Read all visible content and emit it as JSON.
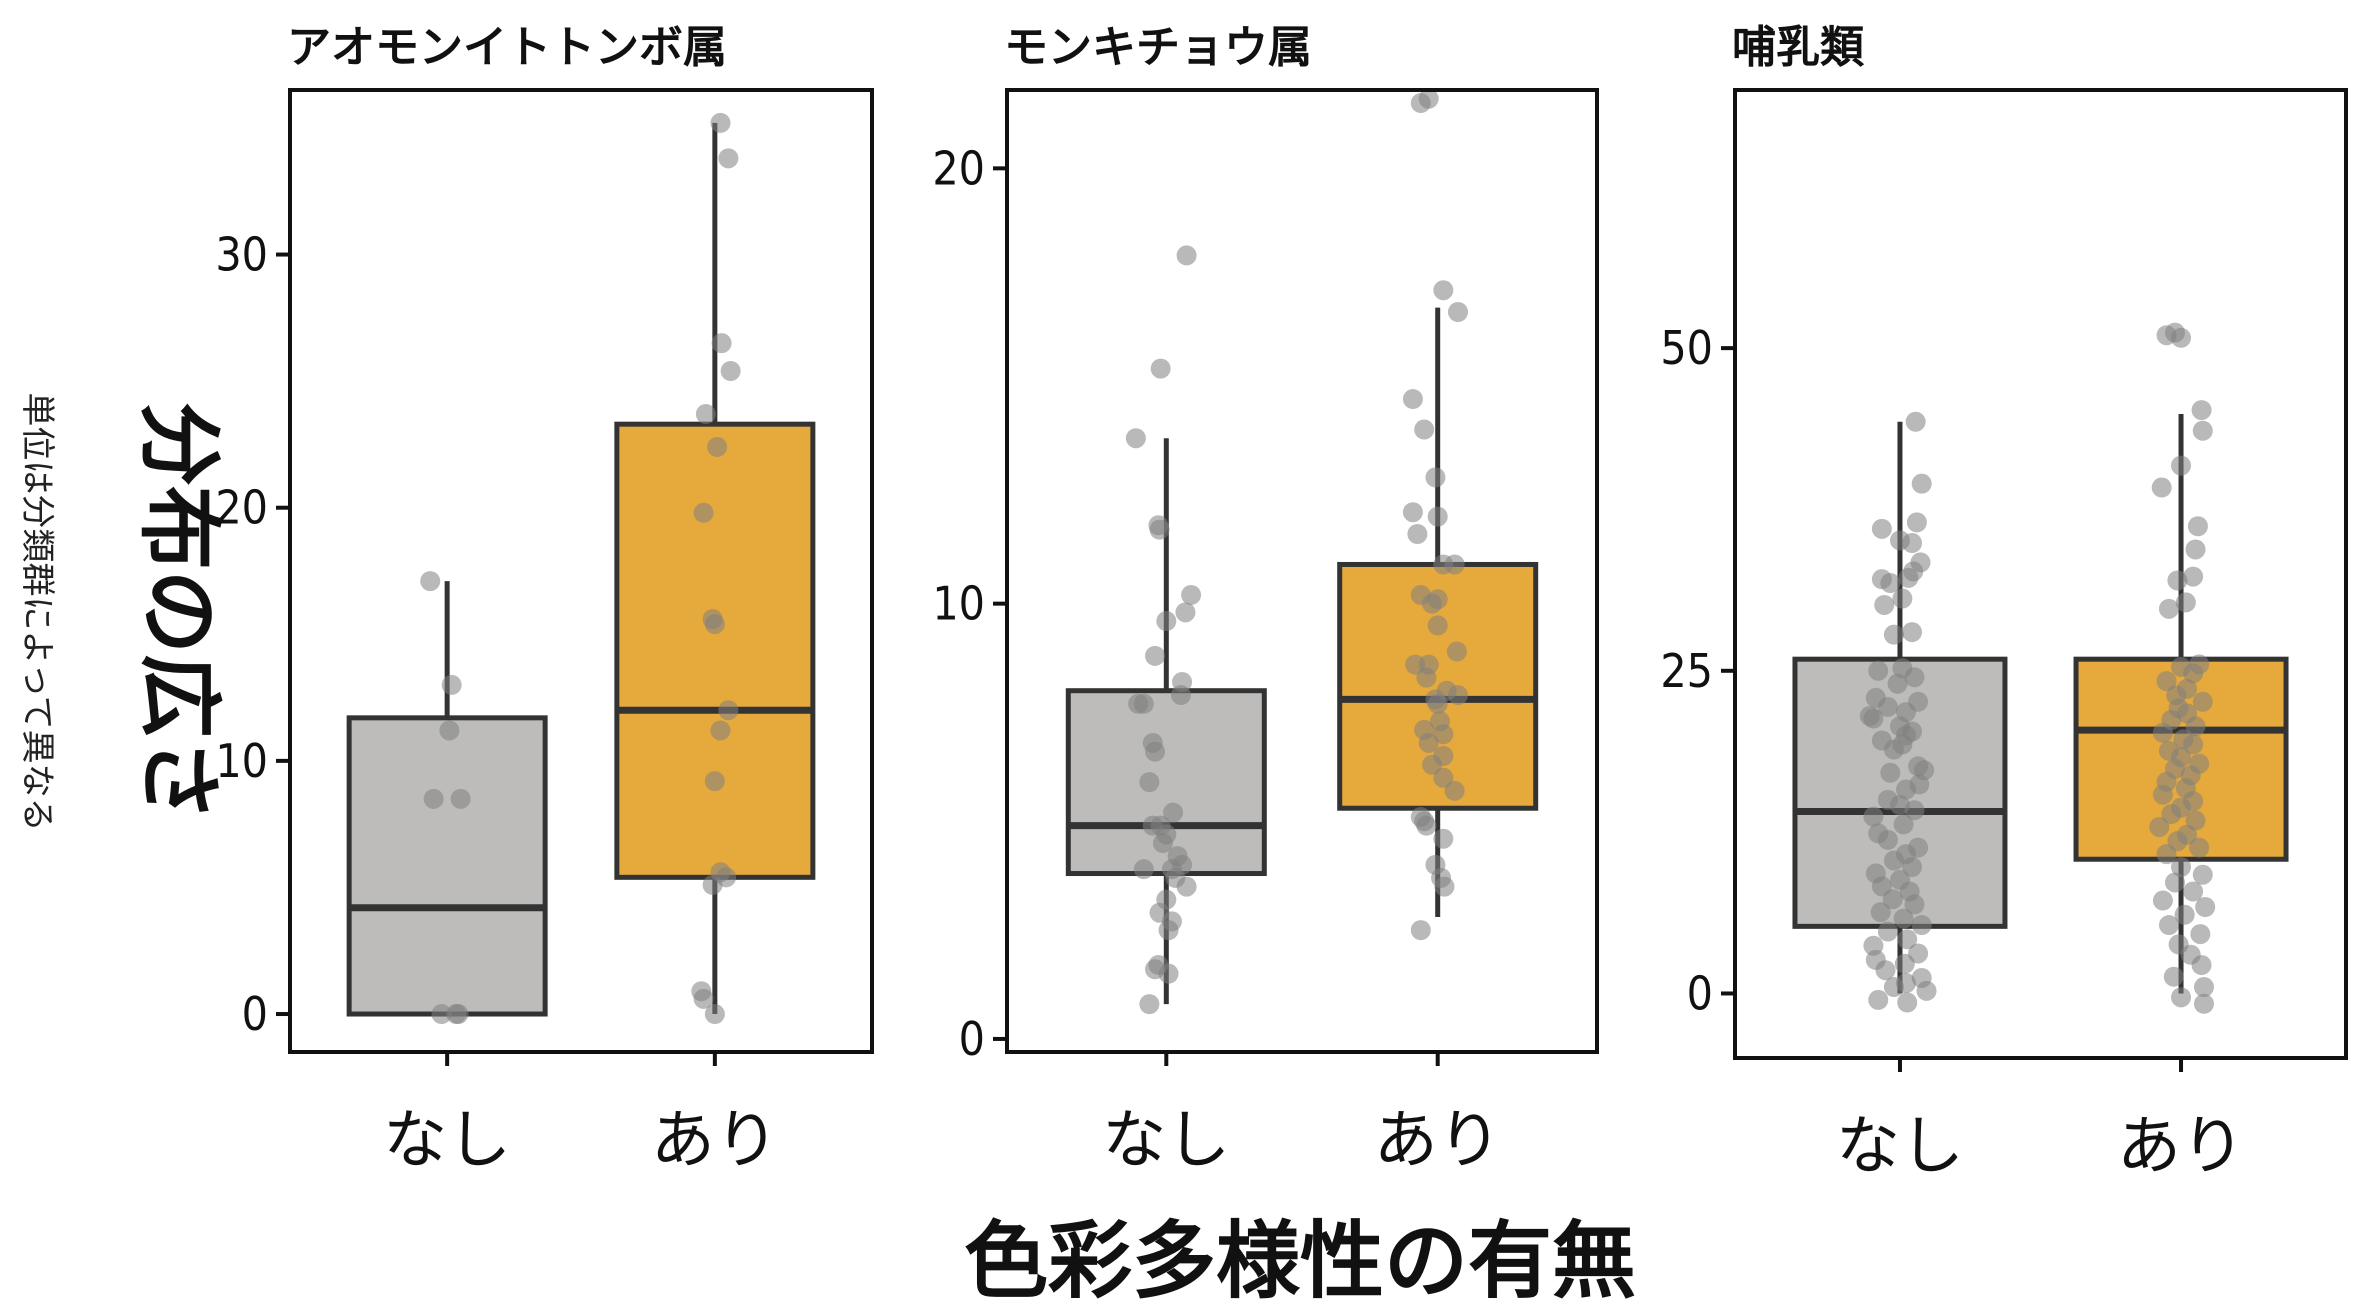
{
  "chart_data": {
    "type": "box",
    "ylabel": "分布の広さ",
    "ylabel_note": "単位は分類群によって異なる",
    "xlabel": "色彩多様性の有無",
    "categories": [
      "なし",
      "あり"
    ],
    "colors": {
      "なし": "#bdbcbb",
      "あり": "#e6a93c",
      "points": "#7f7f7f"
    },
    "panels": [
      {
        "title": "アオモンイトトンボ属",
        "ylim": [
          -1.5,
          36.5
        ],
        "yticks": [
          0,
          10,
          20,
          30
        ],
        "boxes": [
          {
            "group": "なし",
            "whisker_low": 0,
            "q1": 0,
            "median": 4.2,
            "q3": 11.7,
            "whisker_high": 17.1,
            "points": [
              [
                -0.15,
                17.1
              ],
              [
                0.04,
                13.0
              ],
              [
                0.02,
                11.2
              ],
              [
                -0.12,
                8.5
              ],
              [
                0.12,
                8.5
              ],
              [
                -0.05,
                0
              ],
              [
                0.08,
                0
              ],
              [
                0.1,
                0
              ]
            ]
          },
          {
            "group": "あり",
            "whisker_low": 0,
            "q1": 5.4,
            "median": 12.0,
            "q3": 23.3,
            "whisker_high": 35.2,
            "points": [
              [
                0.05,
                35.2
              ],
              [
                0.12,
                33.8
              ],
              [
                0.06,
                26.5
              ],
              [
                0.14,
                25.4
              ],
              [
                -0.08,
                23.7
              ],
              [
                0.02,
                22.4
              ],
              [
                -0.1,
                19.8
              ],
              [
                -0.02,
                15.6
              ],
              [
                0.0,
                15.4
              ],
              [
                0.12,
                12.0
              ],
              [
                0.05,
                11.2
              ],
              [
                0.0,
                9.2
              ],
              [
                0.05,
                5.6
              ],
              [
                0.1,
                5.4
              ],
              [
                -0.02,
                5.1
              ],
              [
                -0.12,
                0.9
              ],
              [
                -0.1,
                0.6
              ],
              [
                0.0,
                0.0
              ]
            ]
          }
        ]
      },
      {
        "title": "モンキチョウ属",
        "ylim": [
          -0.3,
          21.8
        ],
        "yticks": [
          0,
          10,
          20
        ],
        "boxes": [
          {
            "group": "なし",
            "whisker_low": 0.8,
            "q1": 3.8,
            "median": 4.9,
            "q3": 8.0,
            "whisker_high": 13.8,
            "points": [
              [
                0.18,
                18.0
              ],
              [
                -0.05,
                15.4
              ],
              [
                -0.27,
                13.8
              ],
              [
                -0.07,
                11.8
              ],
              [
                -0.06,
                11.7
              ],
              [
                0.22,
                10.2
              ],
              [
                0.17,
                9.8
              ],
              [
                0.0,
                9.6
              ],
              [
                -0.1,
                8.8
              ],
              [
                0.14,
                8.2
              ],
              [
                0.13,
                7.9
              ],
              [
                -0.2,
                7.7
              ],
              [
                -0.25,
                7.7
              ],
              [
                -0.12,
                6.8
              ],
              [
                -0.1,
                6.6
              ],
              [
                -0.15,
                5.9
              ],
              [
                0.06,
                5.2
              ],
              [
                -0.12,
                4.9
              ],
              [
                -0.05,
                4.9
              ],
              [
                0.0,
                4.7
              ],
              [
                -0.03,
                4.5
              ],
              [
                0.1,
                4.2
              ],
              [
                0.14,
                4.0
              ],
              [
                -0.2,
                3.9
              ],
              [
                0.05,
                3.9
              ],
              [
                0.08,
                3.7
              ],
              [
                0.18,
                3.5
              ],
              [
                0.0,
                3.2
              ],
              [
                -0.06,
                2.9
              ],
              [
                0.05,
                2.7
              ],
              [
                0.02,
                2.5
              ],
              [
                -0.07,
                1.7
              ],
              [
                -0.1,
                1.6
              ],
              [
                0.02,
                1.5
              ],
              [
                -0.15,
                0.8
              ]
            ]
          },
          {
            "group": "あり",
            "whisker_low": 2.8,
            "q1": 5.3,
            "median": 7.8,
            "q3": 10.9,
            "whisker_high": 16.8,
            "points": [
              [
                -0.15,
                21.5
              ],
              [
                -0.08,
                21.6
              ],
              [
                0.05,
                17.2
              ],
              [
                0.18,
                16.7
              ],
              [
                -0.22,
                14.7
              ],
              [
                -0.12,
                14.0
              ],
              [
                -0.02,
                12.9
              ],
              [
                -0.22,
                12.1
              ],
              [
                0.0,
                12.0
              ],
              [
                -0.18,
                11.6
              ],
              [
                0.05,
                10.9
              ],
              [
                0.15,
                10.9
              ],
              [
                -0.15,
                10.2
              ],
              [
                0.0,
                10.1
              ],
              [
                -0.05,
                10.0
              ],
              [
                0.0,
                9.5
              ],
              [
                -0.2,
                8.6
              ],
              [
                0.17,
                8.9
              ],
              [
                -0.08,
                8.6
              ],
              [
                -0.1,
                8.3
              ],
              [
                0.08,
                8.0
              ],
              [
                0.18,
                7.9
              ],
              [
                -0.02,
                7.8
              ],
              [
                0.0,
                7.7
              ],
              [
                0.02,
                7.3
              ],
              [
                -0.12,
                7.1
              ],
              [
                0.05,
                7.0
              ],
              [
                -0.08,
                6.8
              ],
              [
                0.05,
                6.5
              ],
              [
                -0.05,
                6.3
              ],
              [
                0.05,
                6.0
              ],
              [
                0.15,
                5.7
              ],
              [
                -0.15,
                5.1
              ],
              [
                -0.12,
                5.0
              ],
              [
                -0.1,
                4.9
              ],
              [
                0.05,
                4.6
              ],
              [
                -0.02,
                4.0
              ],
              [
                0.03,
                3.7
              ],
              [
                0.06,
                3.5
              ],
              [
                -0.15,
                2.5
              ]
            ]
          }
        ]
      },
      {
        "title": "哺乳類",
        "ylim": [
          -5,
          70
        ],
        "yticks": [
          0,
          25,
          50
        ],
        "boxes": [
          {
            "group": "なし",
            "whisker_low": 0,
            "q1": 5.2,
            "median": 14.1,
            "q3": 25.9,
            "whisker_high": 44.3,
            "points": [
              [
                0.13,
                44.3
              ],
              [
                0.18,
                39.5
              ],
              [
                0.14,
                36.5
              ],
              [
                -0.15,
                36.0
              ],
              [
                0.0,
                35.1
              ],
              [
                0.1,
                34.9
              ],
              [
                0.17,
                33.4
              ],
              [
                0.11,
                32.7
              ],
              [
                0.07,
                32.2
              ],
              [
                -0.15,
                32.1
              ],
              [
                -0.08,
                31.8
              ],
              [
                0.02,
                30.6
              ],
              [
                -0.13,
                30.1
              ],
              [
                0.1,
                28.0
              ],
              [
                -0.05,
                27.8
              ],
              [
                0.02,
                25.2
              ],
              [
                -0.18,
                25.0
              ],
              [
                0.12,
                24.5
              ],
              [
                -0.02,
                24.0
              ],
              [
                -0.2,
                22.9
              ],
              [
                0.15,
                22.6
              ],
              [
                -0.1,
                22.2
              ],
              [
                0.05,
                21.8
              ],
              [
                -0.25,
                21.5
              ],
              [
                -0.22,
                21.3
              ],
              [
                0.0,
                20.7
              ],
              [
                0.1,
                20.3
              ],
              [
                0.05,
                20.0
              ],
              [
                -0.15,
                19.6
              ],
              [
                0.02,
                19.3
              ],
              [
                -0.05,
                18.9
              ],
              [
                0.15,
                17.6
              ],
              [
                0.2,
                17.3
              ],
              [
                -0.08,
                17.1
              ],
              [
                0.16,
                16.2
              ],
              [
                0.05,
                15.8
              ],
              [
                -0.1,
                15.0
              ],
              [
                0.0,
                14.6
              ],
              [
                0.12,
                14.2
              ],
              [
                -0.22,
                13.7
              ],
              [
                0.03,
                13.1
              ],
              [
                -0.18,
                12.4
              ],
              [
                -0.1,
                11.9
              ],
              [
                0.15,
                11.3
              ],
              [
                0.05,
                10.8
              ],
              [
                -0.05,
                10.3
              ],
              [
                0.1,
                9.8
              ],
              [
                -0.2,
                9.3
              ],
              [
                0.0,
                8.8
              ],
              [
                -0.15,
                8.3
              ],
              [
                0.08,
                7.9
              ],
              [
                -0.06,
                7.3
              ],
              [
                0.12,
                6.9
              ],
              [
                -0.16,
                6.3
              ],
              [
                0.03,
                5.8
              ],
              [
                0.18,
                5.3
              ],
              [
                -0.1,
                4.8
              ],
              [
                0.06,
                4.2
              ],
              [
                -0.22,
                3.7
              ],
              [
                0.15,
                3.1
              ],
              [
                -0.2,
                2.6
              ],
              [
                0.04,
                2.3
              ],
              [
                -0.12,
                1.8
              ],
              [
                0.18,
                1.2
              ],
              [
                0.05,
                0.8
              ],
              [
                -0.05,
                0.5
              ],
              [
                0.22,
                0.2
              ],
              [
                -0.18,
                -0.5
              ],
              [
                0.06,
                -0.7
              ]
            ]
          },
          {
            "group": "あり",
            "whisker_low": 0,
            "q1": 10.4,
            "median": 20.4,
            "q3": 25.9,
            "whisker_high": 44.9,
            "points": [
              [
                -0.12,
                51.0
              ],
              [
                -0.05,
                51.2
              ],
              [
                0.0,
                50.8
              ],
              [
                0.17,
                45.2
              ],
              [
                0.18,
                43.6
              ],
              [
                0.0,
                40.9
              ],
              [
                -0.16,
                39.2
              ],
              [
                0.14,
                36.2
              ],
              [
                0.12,
                34.4
              ],
              [
                0.1,
                32.3
              ],
              [
                -0.03,
                32.0
              ],
              [
                0.04,
                30.3
              ],
              [
                -0.1,
                29.8
              ],
              [
                0.15,
                25.5
              ],
              [
                0.0,
                25.3
              ],
              [
                0.1,
                24.8
              ],
              [
                -0.12,
                24.2
              ],
              [
                0.05,
                23.6
              ],
              [
                -0.04,
                23.1
              ],
              [
                0.18,
                22.6
              ],
              [
                -0.02,
                22.1
              ],
              [
                0.05,
                21.7
              ],
              [
                -0.08,
                21.2
              ],
              [
                0.12,
                20.7
              ],
              [
                -0.15,
                20.2
              ],
              [
                0.02,
                19.7
              ],
              [
                0.1,
                19.3
              ],
              [
                -0.1,
                18.8
              ],
              [
                0.0,
                18.3
              ],
              [
                0.15,
                17.8
              ],
              [
                -0.05,
                17.4
              ],
              [
                0.08,
                16.9
              ],
              [
                -0.12,
                16.4
              ],
              [
                0.04,
                15.9
              ],
              [
                -0.15,
                15.4
              ],
              [
                0.1,
                14.9
              ],
              [
                0.0,
                14.4
              ],
              [
                -0.08,
                13.9
              ],
              [
                0.12,
                13.4
              ],
              [
                -0.18,
                12.9
              ],
              [
                0.05,
                12.3
              ],
              [
                -0.03,
                11.8
              ],
              [
                0.15,
                11.3
              ],
              [
                -0.12,
                10.8
              ],
              [
                0.0,
                9.8
              ],
              [
                0.18,
                9.2
              ],
              [
                -0.05,
                8.6
              ],
              [
                0.1,
                7.9
              ],
              [
                -0.15,
                7.2
              ],
              [
                0.2,
                6.7
              ],
              [
                0.03,
                6.1
              ],
              [
                -0.1,
                5.3
              ],
              [
                0.16,
                4.6
              ],
              [
                -0.02,
                3.8
              ],
              [
                0.08,
                3.0
              ],
              [
                0.17,
                2.2
              ],
              [
                -0.06,
                1.3
              ],
              [
                0.19,
                0.5
              ],
              [
                0.0,
                -0.3
              ],
              [
                0.19,
                -0.8
              ]
            ]
          }
        ]
      }
    ]
  }
}
